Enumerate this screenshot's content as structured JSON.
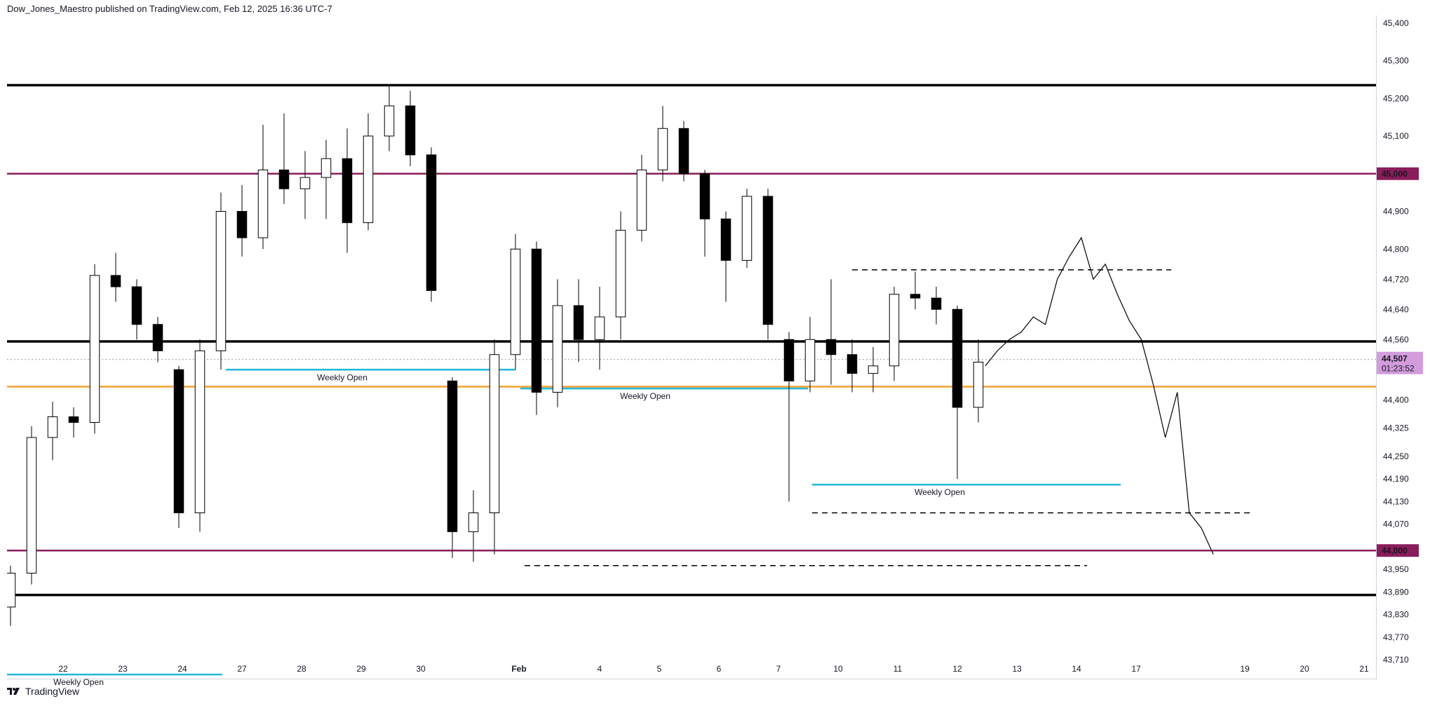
{
  "header": {
    "published_line": "Dow_Jones_Maestro published on TradingView.com, Feb 12, 2025 16:36 UTC-7"
  },
  "footer": {
    "brand": "TradingView"
  },
  "colors": {
    "background": "#ffffff",
    "candle_up_body": "#ffffff",
    "candle_down_body": "#000000",
    "candle_outline": "#000000",
    "support_resistance": "#000000",
    "round_level": "#8a1d5c",
    "weekly_open": "#22b8d6",
    "orange_level": "#f5a030",
    "current_price_badge": "#d39cdc"
  },
  "chart_data": {
    "type": "candlestick",
    "title": "",
    "xlabel": "",
    "ylabel": "",
    "ylim": [
      43660,
      45420
    ],
    "y_ticks": [
      "45,400",
      "45,300",
      "45,200",
      "45,100",
      "44,900",
      "44,800",
      "44,720",
      "44,640",
      "44,560",
      "44,400",
      "44,325",
      "44,250",
      "44,190",
      "44,130",
      "44,070",
      "43,950",
      "43,890",
      "43,830",
      "43,770",
      "43,710"
    ],
    "x_ticks": [
      "22",
      "23",
      "24",
      "27",
      "28",
      "29",
      "30",
      "Feb",
      "4",
      "5",
      "6",
      "7",
      "10",
      "11",
      "12",
      "13",
      "14",
      "17",
      "19",
      "20",
      "21"
    ],
    "horizontal_levels": [
      {
        "price": 45235,
        "kind": "support_resistance"
      },
      {
        "price": 45000,
        "kind": "round_level",
        "label": "45,000"
      },
      {
        "price": 44555,
        "kind": "support_resistance"
      },
      {
        "price": 44435,
        "kind": "orange_level"
      },
      {
        "price": 44000,
        "kind": "round_level",
        "label": "44,000"
      },
      {
        "price": 43882,
        "kind": "support_resistance"
      }
    ],
    "weekly_opens": [
      {
        "label": "Weekly Open",
        "price": 43671
      },
      {
        "label": "Weekly Open",
        "price": 44480
      },
      {
        "label": "Weekly Open",
        "price": 44430
      },
      {
        "label": "Weekly Open",
        "price": 44175
      }
    ],
    "dashed_levels": [
      44745,
      44100,
      43960
    ],
    "current_price": {
      "price": "44,507",
      "countdown": "01:23:52"
    },
    "candles": [
      {
        "date": "Jan 21",
        "o": 43850,
        "h": 43960,
        "l": 43800,
        "c": 43940
      },
      {
        "date": "Jan 22",
        "o": 43940,
        "h": 44330,
        "l": 43910,
        "c": 44300
      },
      {
        "date": "Jan 22",
        "o": 44300,
        "h": 44395,
        "l": 44240,
        "c": 44355
      },
      {
        "date": "Jan 23",
        "o": 44355,
        "h": 44380,
        "l": 44300,
        "c": 44340
      },
      {
        "date": "Jan 23",
        "o": 44340,
        "h": 44760,
        "l": 44310,
        "c": 44730
      },
      {
        "date": "Jan 24",
        "o": 44730,
        "h": 44790,
        "l": 44660,
        "c": 44700
      },
      {
        "date": "Jan 24",
        "o": 44700,
        "h": 44720,
        "l": 44560,
        "c": 44600
      },
      {
        "date": "Jan 24",
        "o": 44600,
        "h": 44620,
        "l": 44500,
        "c": 44530
      },
      {
        "date": "Jan 27",
        "o": 44480,
        "h": 44490,
        "l": 44060,
        "c": 44100
      },
      {
        "date": "Jan 27",
        "o": 44100,
        "h": 44560,
        "l": 44050,
        "c": 44530
      },
      {
        "date": "Jan 28",
        "o": 44530,
        "h": 44950,
        "l": 44480,
        "c": 44900
      },
      {
        "date": "Jan 28",
        "o": 44900,
        "h": 44970,
        "l": 44780,
        "c": 44830
      },
      {
        "date": "Jan 28",
        "o": 44830,
        "h": 45130,
        "l": 44800,
        "c": 45010
      },
      {
        "date": "Jan 29",
        "o": 45010,
        "h": 45160,
        "l": 44920,
        "c": 44960
      },
      {
        "date": "Jan 29",
        "o": 44960,
        "h": 45060,
        "l": 44880,
        "c": 44990
      },
      {
        "date": "Jan 30",
        "o": 44990,
        "h": 45090,
        "l": 44880,
        "c": 45040
      },
      {
        "date": "Jan 30",
        "o": 45040,
        "h": 45120,
        "l": 44790,
        "c": 44870
      },
      {
        "date": "Jan 30",
        "o": 44870,
        "h": 45160,
        "l": 44850,
        "c": 45100
      },
      {
        "date": "Jan 31",
        "o": 45100,
        "h": 45235,
        "l": 45060,
        "c": 45180
      },
      {
        "date": "Jan 31",
        "o": 45180,
        "h": 45220,
        "l": 45020,
        "c": 45050
      },
      {
        "date": "Jan 31",
        "o": 45050,
        "h": 45070,
        "l": 44660,
        "c": 44690
      },
      {
        "date": "Feb 3",
        "o": 44450,
        "h": 44460,
        "l": 43980,
        "c": 44050
      },
      {
        "date": "Feb 3",
        "o": 44050,
        "h": 44160,
        "l": 43970,
        "c": 44100
      },
      {
        "date": "Feb 3",
        "o": 44100,
        "h": 44560,
        "l": 43990,
        "c": 44520
      },
      {
        "date": "Feb 4",
        "o": 44520,
        "h": 44840,
        "l": 44480,
        "c": 44800
      },
      {
        "date": "Feb 4",
        "o": 44800,
        "h": 44820,
        "l": 44360,
        "c": 44420
      },
      {
        "date": "Feb 4",
        "o": 44420,
        "h": 44720,
        "l": 44380,
        "c": 44650
      },
      {
        "date": "Feb 5",
        "o": 44650,
        "h": 44720,
        "l": 44500,
        "c": 44560
      },
      {
        "date": "Feb 5",
        "o": 44560,
        "h": 44700,
        "l": 44480,
        "c": 44620
      },
      {
        "date": "Feb 5",
        "o": 44620,
        "h": 44900,
        "l": 44560,
        "c": 44850
      },
      {
        "date": "Feb 6",
        "o": 44850,
        "h": 45050,
        "l": 44820,
        "c": 45010
      },
      {
        "date": "Feb 6",
        "o": 45010,
        "h": 45180,
        "l": 44980,
        "c": 45120
      },
      {
        "date": "Feb 6",
        "o": 45120,
        "h": 45140,
        "l": 44980,
        "c": 45000
      },
      {
        "date": "Feb 7",
        "o": 45000,
        "h": 45010,
        "l": 44780,
        "c": 44880
      },
      {
        "date": "Feb 7",
        "o": 44880,
        "h": 44900,
        "l": 44660,
        "c": 44770
      },
      {
        "date": "Feb 7",
        "o": 44770,
        "h": 44960,
        "l": 44750,
        "c": 44940
      },
      {
        "date": "Feb 7",
        "o": 44940,
        "h": 44960,
        "l": 44560,
        "c": 44600
      },
      {
        "date": "Feb 10",
        "o": 44560,
        "h": 44580,
        "l": 44130,
        "c": 44450
      },
      {
        "date": "Feb 10",
        "o": 44450,
        "h": 44620,
        "l": 44420,
        "c": 44560
      },
      {
        "date": "Feb 10",
        "o": 44560,
        "h": 44720,
        "l": 44440,
        "c": 44520
      },
      {
        "date": "Feb 11",
        "o": 44520,
        "h": 44560,
        "l": 44420,
        "c": 44470
      },
      {
        "date": "Feb 11",
        "o": 44470,
        "h": 44540,
        "l": 44420,
        "c": 44490
      },
      {
        "date": "Feb 11",
        "o": 44490,
        "h": 44700,
        "l": 44450,
        "c": 44680
      },
      {
        "date": "Feb 12",
        "o": 44680,
        "h": 44740,
        "l": 44640,
        "c": 44670
      },
      {
        "date": "Feb 12",
        "o": 44670,
        "h": 44700,
        "l": 44600,
        "c": 44640
      },
      {
        "date": "Feb 12",
        "o": 44640,
        "h": 44650,
        "l": 44190,
        "c": 44380
      },
      {
        "date": "Feb 12",
        "o": 44380,
        "h": 44560,
        "l": 44340,
        "c": 44500
      }
    ],
    "projection": [
      [
        44490,
        44530,
        44560,
        44580,
        44620,
        44600,
        44720,
        44780,
        44830,
        44720,
        44760,
        44680,
        44610,
        44560,
        44440,
        44300,
        44420,
        44100,
        44060,
        43990
      ]
    ]
  }
}
